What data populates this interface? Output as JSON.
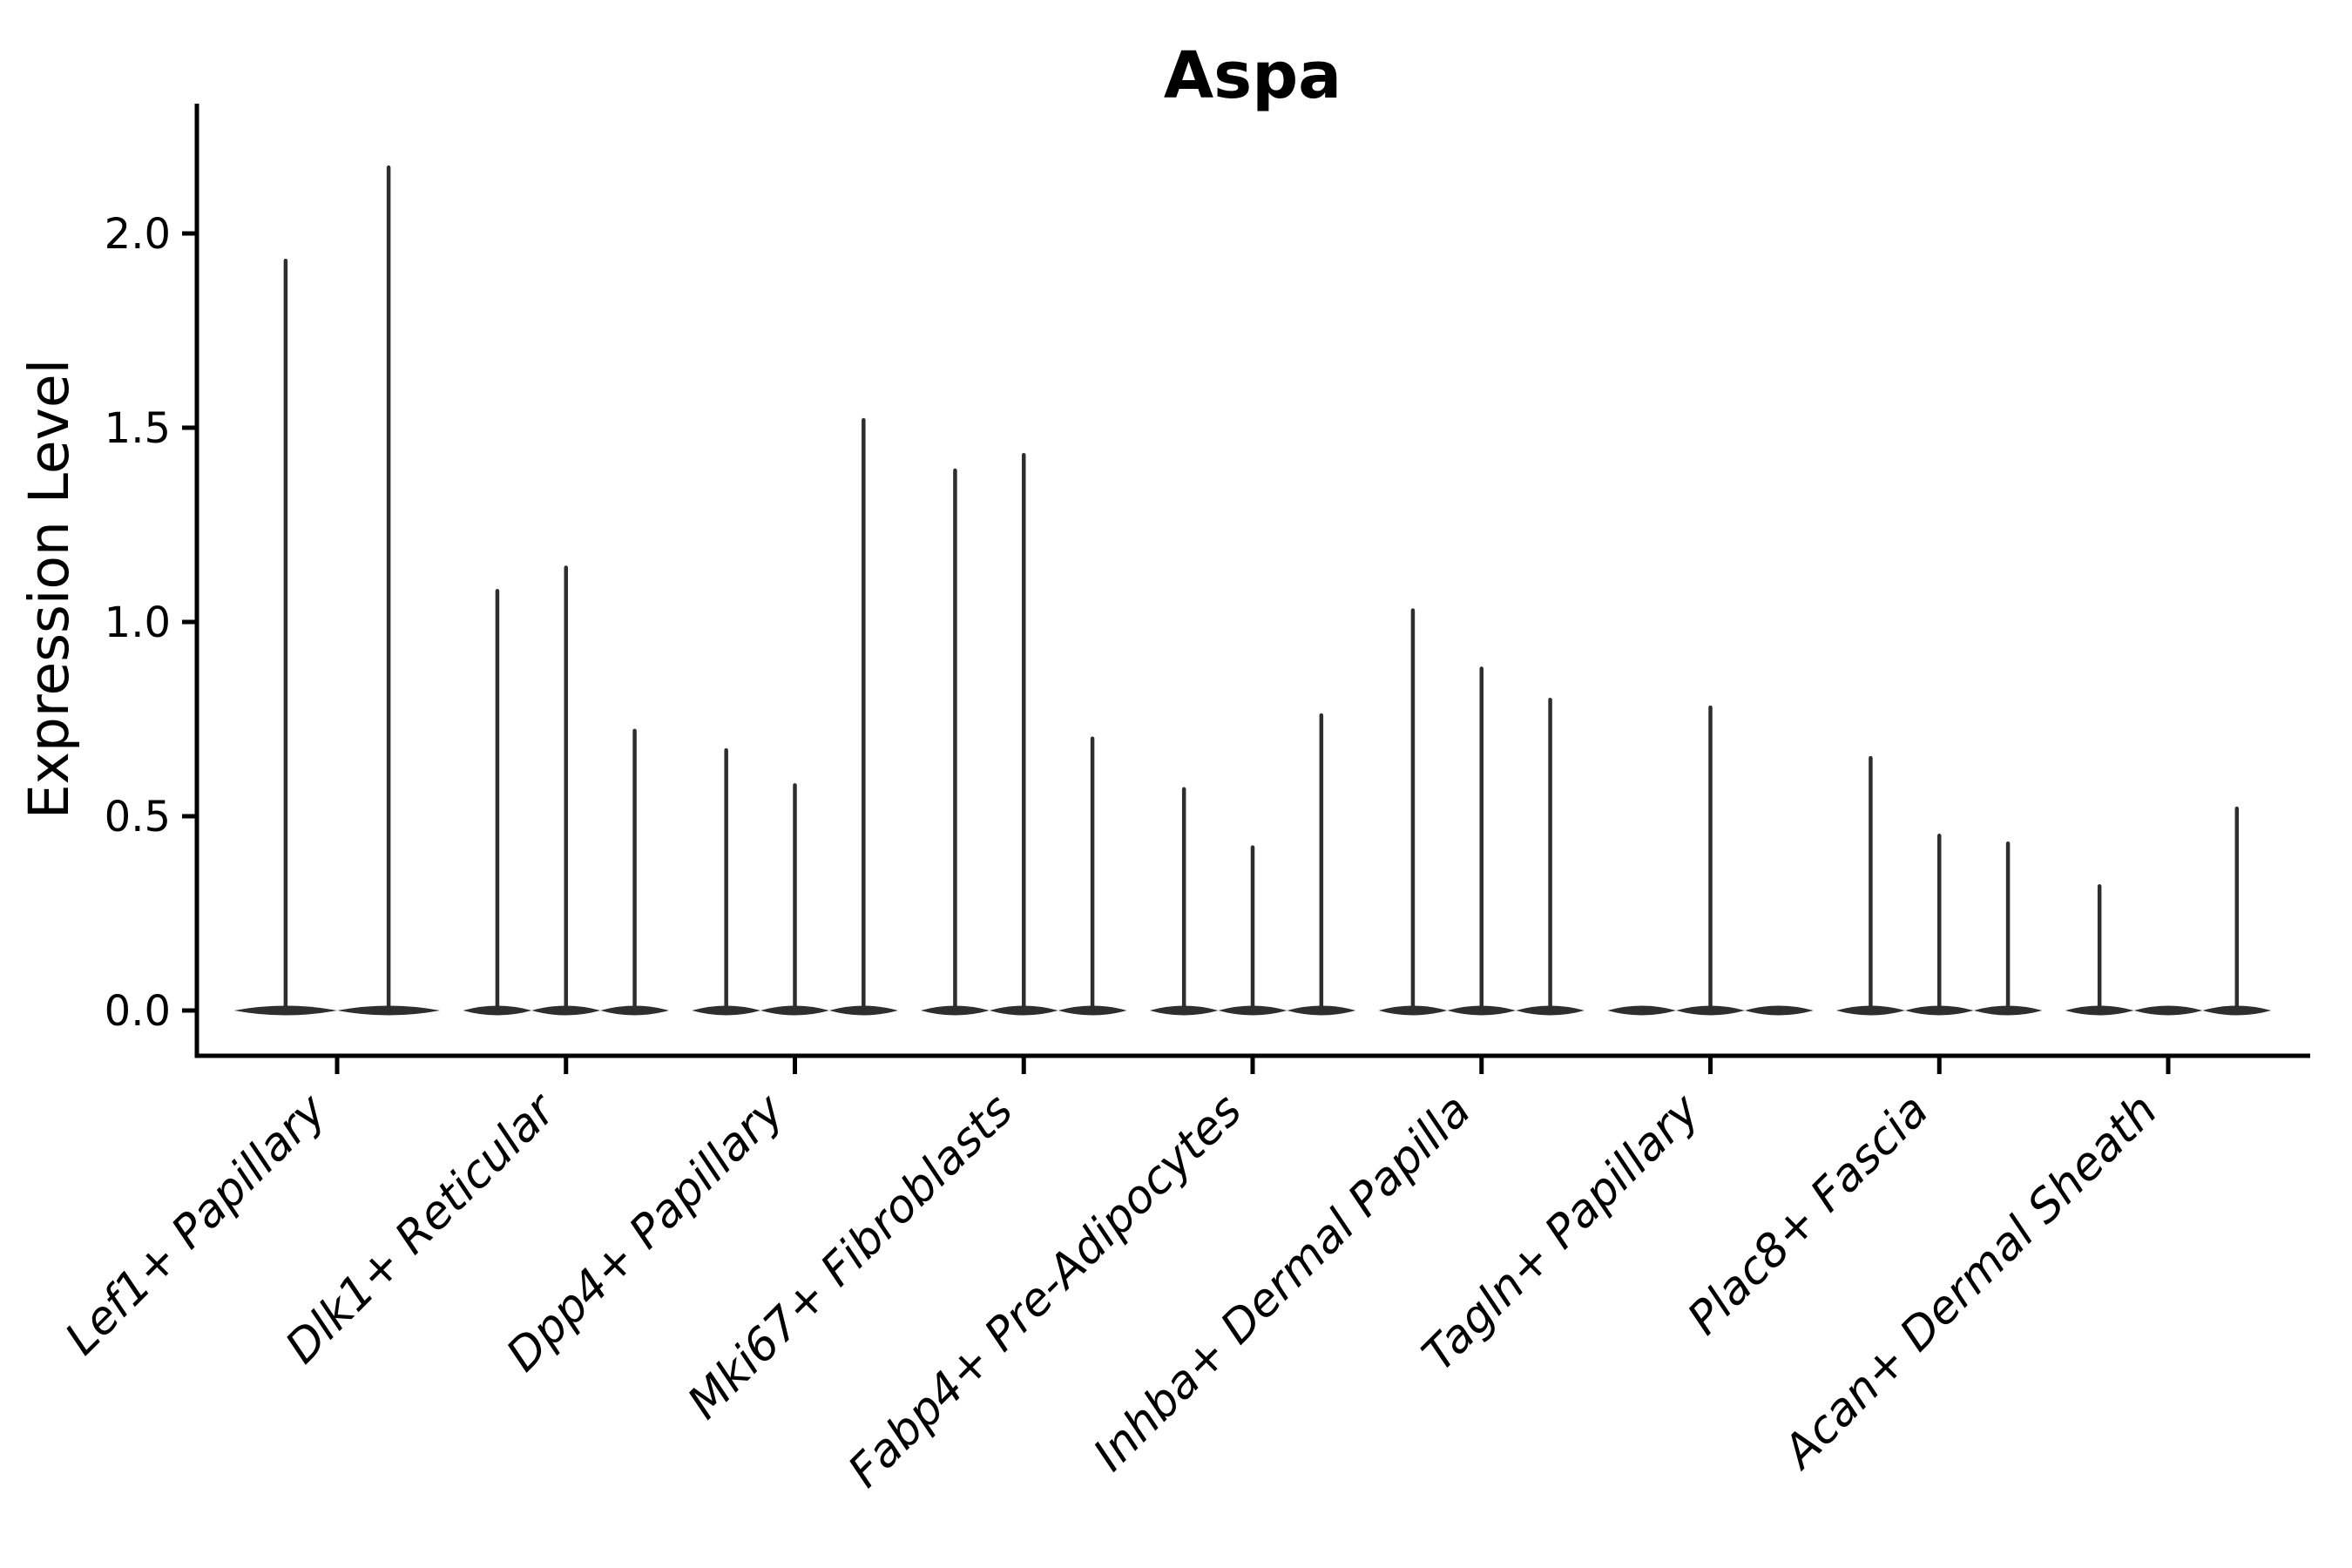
{
  "chart_data": {
    "type": "violin",
    "title": "Aspa",
    "xlabel": "",
    "ylabel": "Expression Level",
    "yticks": [
      0.0,
      0.5,
      1.0,
      1.5,
      2.0
    ],
    "ytick_labels": [
      "0.0",
      "0.5",
      "1.0",
      "1.5",
      "2.0"
    ],
    "ylim": [
      -0.12,
      2.33
    ],
    "grid": false,
    "legend": "none",
    "categories": [
      "Lef1+ Papillary",
      "Dlk1+ Reticular",
      "Dpp4+ Papillary",
      "Mki67+ Fibroblasts",
      "Fabp4+ Pre-Adipocytes",
      "Inhba+ Dermal Papilla",
      "Tagln+ Papillary",
      "Plac8+ Fascia",
      "Acan+ Dermal Sheath"
    ],
    "groups": [
      {
        "label": "Lef1+ Papillary",
        "violins": [
          {
            "offset": -0.225,
            "width": 0.45,
            "max": 1.93
          },
          {
            "offset": 0.225,
            "width": 0.45,
            "max": 2.17
          }
        ]
      },
      {
        "label": "Dlk1+ Reticular",
        "violins": [
          {
            "offset": -0.3,
            "width": 0.3,
            "max": 1.08
          },
          {
            "offset": 0.0,
            "width": 0.3,
            "max": 1.14
          },
          {
            "offset": 0.3,
            "width": 0.3,
            "max": 0.72
          }
        ]
      },
      {
        "label": "Dpp4+ Papillary",
        "violins": [
          {
            "offset": -0.3,
            "width": 0.3,
            "max": 0.67
          },
          {
            "offset": 0.0,
            "width": 0.3,
            "max": 0.58
          },
          {
            "offset": 0.3,
            "width": 0.3,
            "max": 1.52
          }
        ]
      },
      {
        "label": "Mki67+ Fibroblasts",
        "violins": [
          {
            "offset": -0.3,
            "width": 0.3,
            "max": 1.39
          },
          {
            "offset": 0.0,
            "width": 0.3,
            "max": 1.43
          },
          {
            "offset": 0.3,
            "width": 0.3,
            "max": 0.7
          }
        ]
      },
      {
        "label": "Fabp4+ Pre-Adipocytes",
        "violins": [
          {
            "offset": -0.3,
            "width": 0.3,
            "max": 0.57
          },
          {
            "offset": 0.0,
            "width": 0.3,
            "max": 0.42
          },
          {
            "offset": 0.3,
            "width": 0.3,
            "max": 0.76
          }
        ]
      },
      {
        "label": "Inhba+ Dermal Papilla",
        "violins": [
          {
            "offset": -0.3,
            "width": 0.3,
            "max": 1.03
          },
          {
            "offset": 0.0,
            "width": 0.3,
            "max": 0.88
          },
          {
            "offset": 0.3,
            "width": 0.3,
            "max": 0.8
          }
        ]
      },
      {
        "label": "Tagln+ Papillary",
        "violins": [
          {
            "offset": -0.3,
            "width": 0.3,
            "max": 0.0
          },
          {
            "offset": 0.0,
            "width": 0.3,
            "max": 0.78
          },
          {
            "offset": 0.3,
            "width": 0.3,
            "max": 0.0
          }
        ]
      },
      {
        "label": "Plac8+ Fascia",
        "violins": [
          {
            "offset": -0.3,
            "width": 0.3,
            "max": 0.65
          },
          {
            "offset": 0.0,
            "width": 0.3,
            "max": 0.45
          },
          {
            "offset": 0.3,
            "width": 0.3,
            "max": 0.43
          }
        ]
      },
      {
        "label": "Acan+ Dermal Sheath",
        "violins": [
          {
            "offset": -0.3,
            "width": 0.3,
            "max": 0.32
          },
          {
            "offset": 0.0,
            "width": 0.3,
            "max": 0.0
          },
          {
            "offset": 0.3,
            "width": 0.3,
            "max": 0.52
          }
        ]
      }
    ],
    "style": {
      "violin_color": "#2e2e2e",
      "axis_color": "#000000",
      "text_color": "#000000",
      "background": "#ffffff"
    }
  }
}
